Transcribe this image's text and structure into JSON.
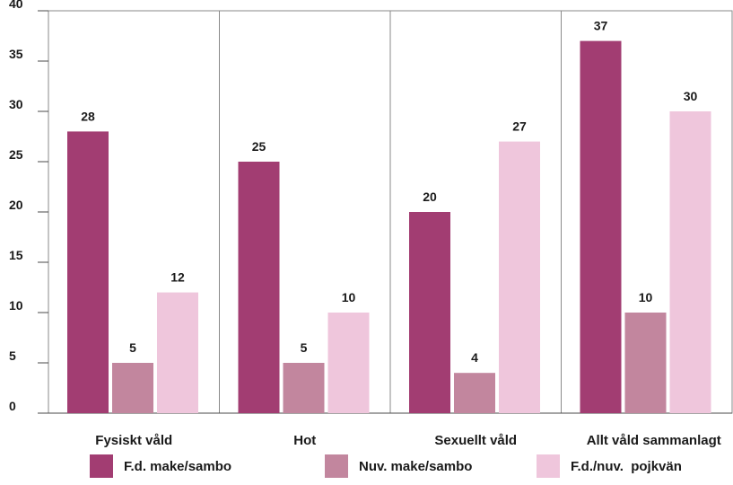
{
  "chart_data": {
    "type": "bar",
    "categories": [
      "Fysiskt våld",
      "Hot",
      "Sexuellt våld",
      "Allt våld sammanlagt"
    ],
    "series": [
      {
        "name": "F.d. make/sambo",
        "color": "#a23d72",
        "values": [
          28,
          25,
          20,
          37
        ]
      },
      {
        "name": "Nuv. make/sambo",
        "color": "#c2869e",
        "values": [
          5,
          5,
          4,
          10
        ]
      },
      {
        "name": "F.d./nuv.  pojkvän",
        "color": "#efc6dc",
        "values": [
          12,
          10,
          27,
          30
        ]
      }
    ],
    "ylim": [
      0,
      40
    ],
    "yticks": [
      0,
      5,
      10,
      15,
      20,
      25,
      30,
      35,
      40
    ],
    "grid": "vertical category separators",
    "legend": "bottom",
    "data_labels": true
  }
}
